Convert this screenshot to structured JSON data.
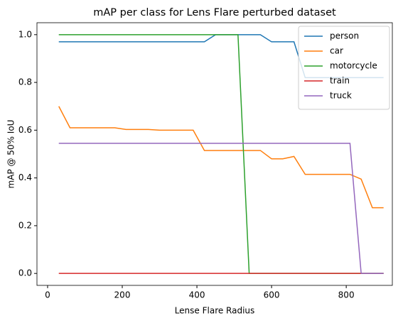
{
  "chart_data": {
    "type": "line",
    "title": "mAP per class for Lens Flare perturbed dataset",
    "x_label": "Lense Flare Radius",
    "y_label": "mAP @ 50% IoU",
    "x": [
      30,
      60,
      90,
      120,
      150,
      180,
      210,
      240,
      270,
      300,
      330,
      360,
      390,
      420,
      450,
      480,
      510,
      540,
      570,
      600,
      630,
      660,
      690,
      720,
      750,
      780,
      810,
      840,
      870,
      900
    ],
    "series": [
      {
        "name": "person",
        "color": "#1f77b4",
        "values": [
          0.97,
          0.97,
          0.97,
          0.97,
          0.97,
          0.97,
          0.97,
          0.97,
          0.97,
          0.97,
          0.97,
          0.97,
          0.97,
          0.97,
          1.0,
          1.0,
          1.0,
          1.0,
          1.0,
          0.97,
          0.97,
          0.97,
          0.82,
          0.82,
          0.82,
          0.82,
          0.82,
          0.82,
          0.82,
          0.82
        ]
      },
      {
        "name": "car",
        "color": "#ff7f0e",
        "values": [
          0.7,
          0.61,
          0.61,
          0.61,
          0.61,
          0.61,
          0.603,
          0.603,
          0.603,
          0.6,
          0.6,
          0.6,
          0.6,
          0.515,
          0.515,
          0.515,
          0.515,
          0.515,
          0.515,
          0.48,
          0.48,
          0.49,
          0.415,
          0.415,
          0.415,
          0.415,
          0.415,
          0.395,
          0.275,
          0.275
        ]
      },
      {
        "name": "motorcycle",
        "color": "#2ca02c",
        "values": [
          1.0,
          1.0,
          1.0,
          1.0,
          1.0,
          1.0,
          1.0,
          1.0,
          1.0,
          1.0,
          1.0,
          1.0,
          1.0,
          1.0,
          1.0,
          1.0,
          1.0,
          0,
          0,
          0,
          0,
          0,
          0,
          0,
          0,
          0,
          0,
          0,
          0,
          0
        ]
      },
      {
        "name": "train",
        "color": "#d62728",
        "values": [
          0,
          0,
          0,
          0,
          0,
          0,
          0,
          0,
          0,
          0,
          0,
          0,
          0,
          0,
          0,
          0,
          0,
          0,
          0,
          0,
          0,
          0,
          0,
          0,
          0,
          0,
          0,
          0,
          0,
          0
        ]
      },
      {
        "name": "truck",
        "color": "#9467bd",
        "values": [
          0.545,
          0.545,
          0.545,
          0.545,
          0.545,
          0.545,
          0.545,
          0.545,
          0.545,
          0.545,
          0.545,
          0.545,
          0.545,
          0.545,
          0.545,
          0.545,
          0.545,
          0.545,
          0.545,
          0.545,
          0.545,
          0.545,
          0.545,
          0.545,
          0.545,
          0.545,
          0.545,
          0,
          0,
          0
        ]
      }
    ],
    "xlim": [
      -28.5,
      923.5
    ],
    "xticks": [
      0,
      200,
      400,
      600,
      800
    ],
    "ylim": [
      -0.05,
      1.05
    ],
    "yticks": [
      {
        "value": 0,
        "label": "0.0"
      },
      {
        "value": 0.2,
        "label": "0.2"
      },
      {
        "value": 0.4,
        "label": "0.4"
      },
      {
        "value": 0.6,
        "label": "0.6"
      },
      {
        "value": 0.8,
        "label": "0.8"
      },
      {
        "value": 1.0,
        "label": "1.0"
      }
    ],
    "legend": "upper right"
  }
}
